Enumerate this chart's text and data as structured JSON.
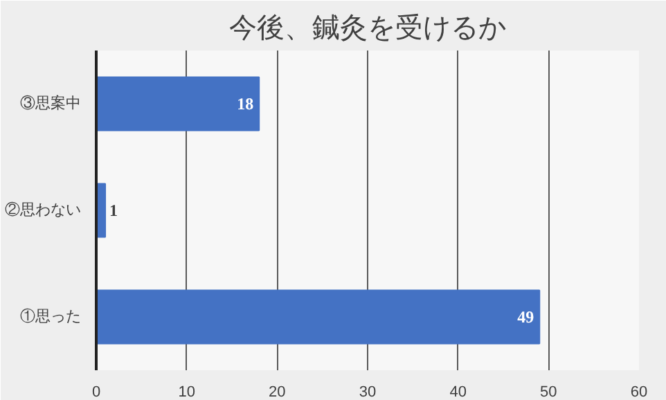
{
  "chart_data": {
    "type": "bar",
    "orientation": "horizontal",
    "title": "今後、鍼灸を受けるか",
    "categories": [
      "③思案中",
      "②思わない",
      "①思った"
    ],
    "values": [
      18,
      1,
      49
    ],
    "color": "#4472c4",
    "xlim": [
      0,
      60
    ],
    "xticks": [
      0,
      10,
      20,
      30,
      40,
      50,
      60
    ],
    "grid": "x",
    "data_labels": true
  }
}
